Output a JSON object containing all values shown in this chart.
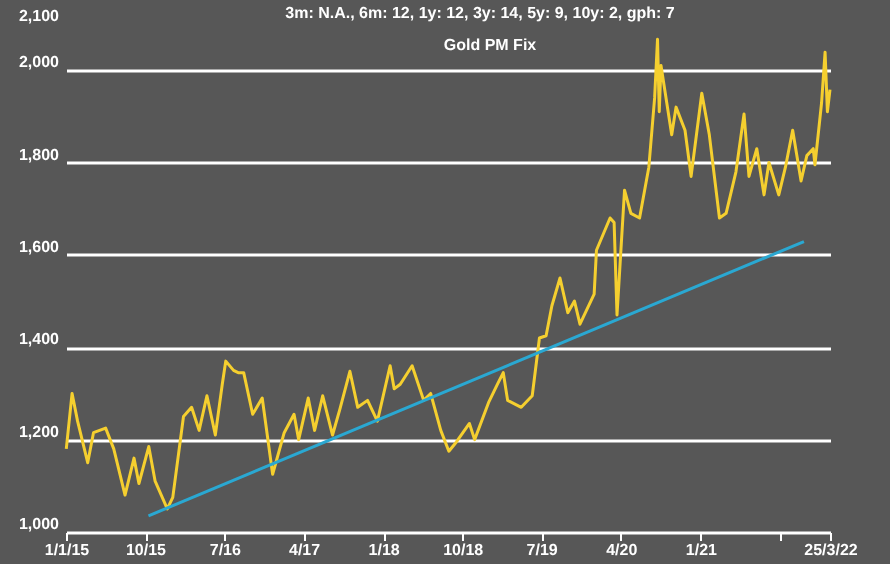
{
  "chart_data": {
    "type": "line",
    "title": "Gold PM Fix",
    "annotations": [
      "3m: N.A.,   6m: 12,   1y: 12,   3y: 14,   5y: 9,   10y: 2,   gph: 7"
    ],
    "x": [
      "2015-01-02",
      "2015-01-22",
      "2015-02-10",
      "2015-03-17",
      "2015-04-06",
      "2015-05-18",
      "2015-06-15",
      "2015-07-24",
      "2015-08-24",
      "2015-09-10",
      "2015-10-14",
      "2015-11-05",
      "2015-12-17",
      "2016-01-05",
      "2016-02-11",
      "2016-03-10",
      "2016-04-05",
      "2016-05-02",
      "2016-05-31",
      "2016-06-24",
      "2016-07-06",
      "2016-08-02",
      "2016-08-18",
      "2016-09-06",
      "2016-10-07",
      "2016-11-09",
      "2016-12-15",
      "2017-01-24",
      "2017-02-27",
      "2017-03-15",
      "2017-04-17",
      "2017-05-09",
      "2017-06-06",
      "2017-07-10",
      "2017-08-04",
      "2017-09-08",
      "2017-10-05",
      "2017-11-08",
      "2017-12-12",
      "2018-01-25",
      "2018-02-08",
      "2018-03-01",
      "2018-04-11",
      "2018-05-21",
      "2018-06-14",
      "2018-07-19",
      "2018-08-16",
      "2018-09-11",
      "2018-10-26",
      "2018-11-13",
      "2018-12-31",
      "2019-01-31",
      "2019-02-20",
      "2019-03-07",
      "2019-04-23",
      "2019-05-31",
      "2019-06-25",
      "2019-07-18",
      "2019-08-07",
      "2019-09-04",
      "2019-10-01",
      "2019-10-24",
      "2019-11-12",
      "2019-12-31",
      "2020-01-08",
      "2020-02-24",
      "2020-03-09",
      "2020-03-19",
      "2020-04-14",
      "2020-05-06",
      "2020-06-05",
      "2020-07-07",
      "2020-07-27",
      "2020-08-06",
      "2020-08-12",
      "2020-08-18",
      "2020-09-24",
      "2020-10-09",
      "2020-11-09",
      "2020-11-30",
      "2021-01-06",
      "2021-02-01",
      "2021-03-08",
      "2021-03-31",
      "2021-05-04",
      "2021-06-01",
      "2021-06-18",
      "2021-07-15",
      "2021-08-09",
      "2021-08-26",
      "2021-09-29",
      "2021-10-22",
      "2021-11-16",
      "2021-12-15",
      "2022-01-04",
      "2022-01-26",
      "2022-02-01",
      "2022-02-24",
      "2022-03-08",
      "2022-03-16",
      "2022-03-25"
    ],
    "series": [
      {
        "color": "#f5cf2f",
        "values": [
          1180,
          1300,
          1240,
          1150,
          1215,
          1225,
          1180,
          1080,
          1160,
          1105,
          1185,
          1110,
          1050,
          1075,
          1250,
          1270,
          1220,
          1295,
          1210,
          1320,
          1370,
          1350,
          1345,
          1345,
          1255,
          1290,
          1125,
          1215,
          1255,
          1200,
          1290,
          1220,
          1295,
          1210,
          1265,
          1348,
          1270,
          1285,
          1240,
          1360,
          1310,
          1320,
          1360,
          1285,
          1300,
          1220,
          1175,
          1195,
          1235,
          1200,
          1280,
          1320,
          1345,
          1285,
          1270,
          1295,
          1420,
          1425,
          1490,
          1550,
          1475,
          1500,
          1450,
          1515,
          1610,
          1680,
          1670,
          1470,
          1740,
          1690,
          1680,
          1790,
          1940,
          2067,
          1910,
          2010,
          1860,
          1920,
          1870,
          1770,
          1950,
          1860,
          1680,
          1690,
          1780,
          1905,
          1770,
          1830,
          1730,
          1800,
          1730,
          1790,
          1870,
          1760,
          1815,
          1830,
          1795,
          1930,
          2039,
          1910,
          1958
        ]
      },
      {
        "type": "line",
        "color": "#2aa8d2",
        "x": [
          "2015-10-13",
          "2021-12-25"
        ],
        "values": [
          1035,
          1629
        ]
      }
    ],
    "xlim": [
      "2015-01-01",
      "2022-03-25"
    ],
    "xticks": [
      {
        "value": "2015-01-01",
        "label": "1/1/15"
      },
      {
        "value": "2015-10-01",
        "label": "10/15"
      },
      {
        "value": "2016-07-01",
        "label": "7/16"
      },
      {
        "value": "2017-04-01",
        "label": "4/17"
      },
      {
        "value": "2018-01-01",
        "label": "1/18"
      },
      {
        "value": "2018-10-01",
        "label": "10/18"
      },
      {
        "value": "2019-07-01",
        "label": "7/19"
      },
      {
        "value": "2020-04-01",
        "label": "4/20"
      },
      {
        "value": "2021-01-01",
        "label": "1/21"
      },
      {
        "value": "2021-10-01",
        "label": null
      },
      {
        "value": "2022-03-25",
        "label": "25/3/22"
      }
    ],
    "ylim": [
      1000,
      2100
    ],
    "yticks": [
      {
        "value": 1000,
        "label": "1,000"
      },
      {
        "value": 1200,
        "label": "1,200"
      },
      {
        "value": 1400,
        "label": "1,400"
      },
      {
        "value": 1600,
        "label": "1,600"
      },
      {
        "value": 1800,
        "label": "1,800"
      },
      {
        "value": 2000,
        "label": "2,000"
      },
      {
        "value": 2100,
        "label": "2,100"
      }
    ],
    "grid": "y"
  }
}
